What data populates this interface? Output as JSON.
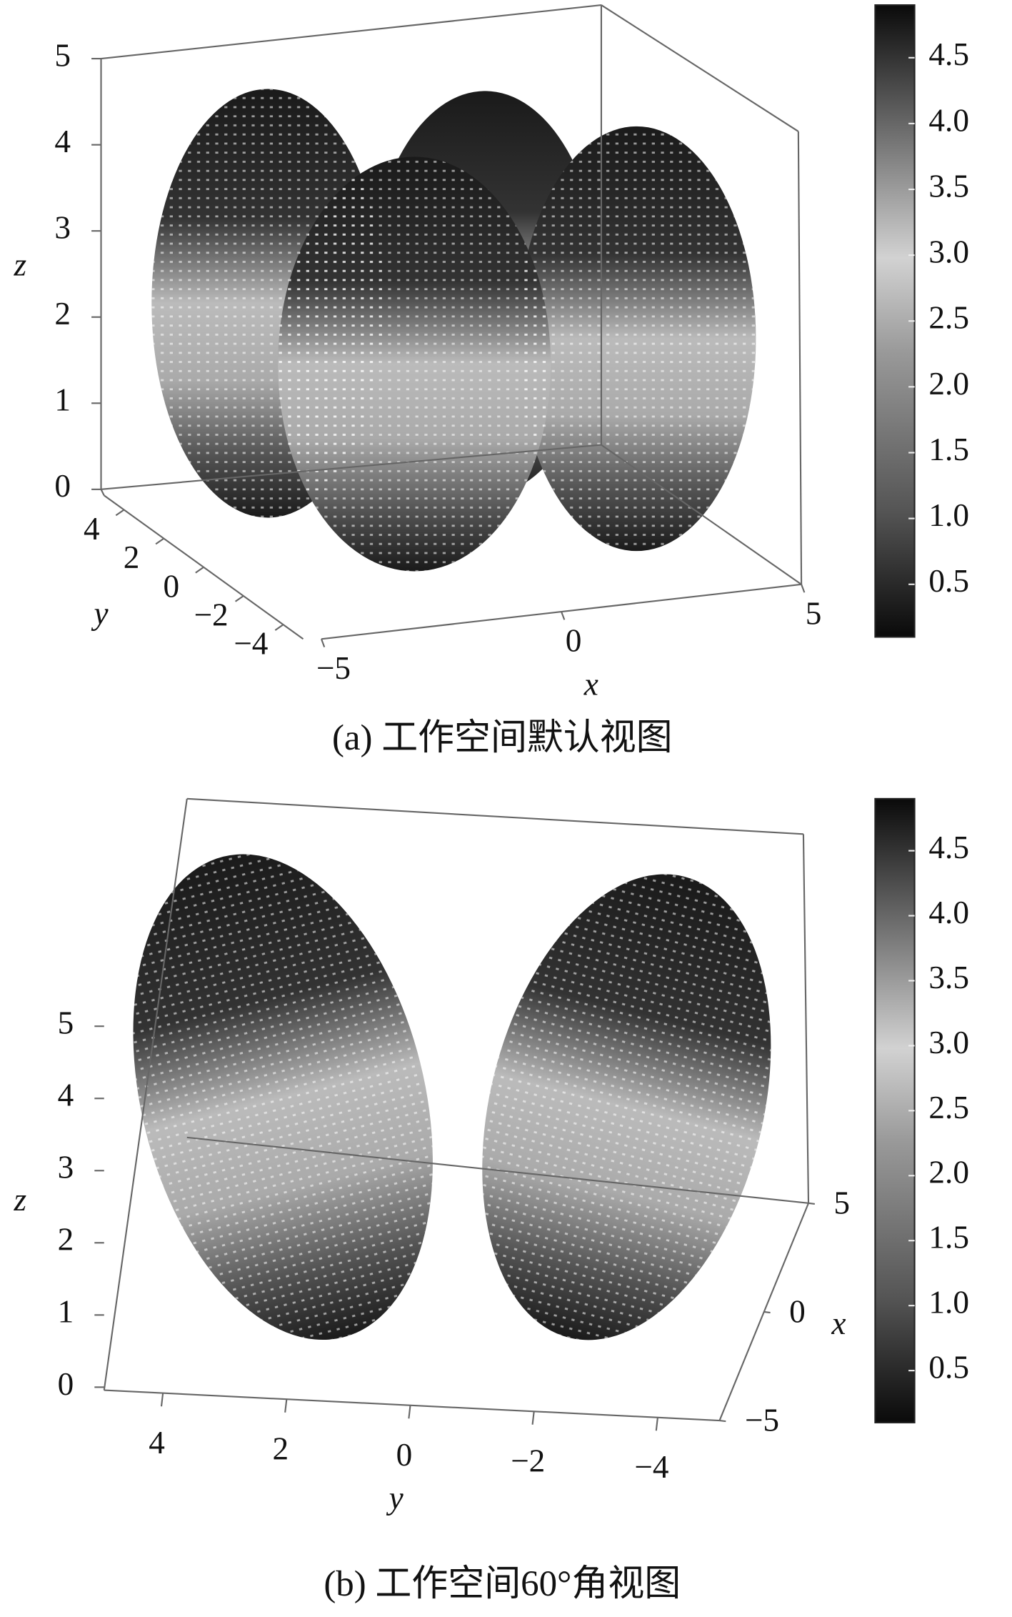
{
  "chart_data": [
    {
      "type": "scatter3d",
      "caption": "(a) 工作空间默认视图",
      "xlabel": "x",
      "ylabel": "y",
      "zlabel": "z",
      "xlim": [
        -5,
        5
      ],
      "xticks": [
        {
          "value": -5,
          "label": "−5"
        },
        0,
        5
      ],
      "ylim": [
        -5,
        5
      ],
      "yticks": [
        4,
        2,
        0,
        {
          "value": -2,
          "label": "−2"
        },
        {
          "value": -4,
          "label": "−4"
        }
      ],
      "zlim": [
        0,
        5
      ],
      "zticks": [
        0,
        1,
        2,
        3,
        4,
        5
      ],
      "colorbar": {
        "lim": [
          0.1,
          4.9
        ],
        "ticks": [
          0.5,
          {
            "value": 1,
            "label": "1.0"
          },
          1.5,
          {
            "value": 2,
            "label": "2.0"
          },
          2.5,
          {
            "value": 3,
            "label": "3.0"
          },
          3.5,
          {
            "value": 4,
            "label": "4.0"
          },
          4.5
        ]
      }
    },
    {
      "type": "scatter3d",
      "caption": "(b) 工作空间60°角视图",
      "xlabel": "x",
      "ylabel": "y",
      "zlabel": "z",
      "xlim": [
        -5,
        5
      ],
      "xticks": [
        {
          "value": -5,
          "label": "−5"
        },
        0,
        5
      ],
      "ylim": [
        -5,
        5
      ],
      "yticks": [
        4,
        2,
        0,
        {
          "value": -2,
          "label": "−2"
        },
        {
          "value": -4,
          "label": "−4"
        }
      ],
      "zlim": [
        0,
        5
      ],
      "zticks": [
        0,
        1,
        2,
        3,
        4,
        5
      ],
      "colorbar": {
        "lim": [
          0.1,
          4.9
        ],
        "ticks": [
          0.5,
          {
            "value": 1,
            "label": "1.0"
          },
          1.5,
          {
            "value": 2,
            "label": "2.0"
          },
          2.5,
          {
            "value": 3,
            "label": "3.0"
          },
          3.5,
          {
            "value": 4,
            "label": "4.0"
          },
          4.5
        ]
      }
    }
  ]
}
